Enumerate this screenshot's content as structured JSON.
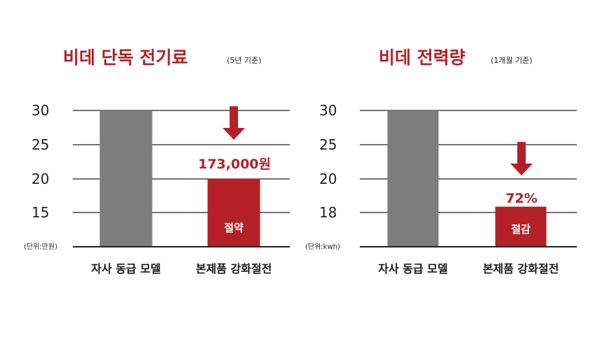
{
  "colors": {
    "accent": "#b32126",
    "grey_bar": "#7d7d7d",
    "axis": "#222222"
  },
  "chart_data": [
    {
      "type": "bar",
      "title": "비데 단독 전기료",
      "subtitle": "(5년 기준)",
      "unit_label": "(단위:만원)",
      "ylim": [
        10,
        30
      ],
      "y_ticks": [
        "30",
        "25",
        "20",
        "15"
      ],
      "categories": [
        "자사 동급 모델",
        "본제품 강화절전"
      ],
      "values": [
        30,
        20
      ],
      "annotation": "173,000원",
      "bar_label": "절약"
    },
    {
      "type": "bar",
      "title": "비데 전력량",
      "subtitle": "(1개월 기준)",
      "unit_label": "(단위:kwh)",
      "ylim": [
        13,
        30
      ],
      "y_ticks": [
        "30",
        "25",
        "20",
        "18"
      ],
      "categories": [
        "자사 동급 모델",
        "본제품 강화절전"
      ],
      "values": [
        30,
        18
      ],
      "annotation": "72%",
      "bar_label": "절감"
    }
  ]
}
